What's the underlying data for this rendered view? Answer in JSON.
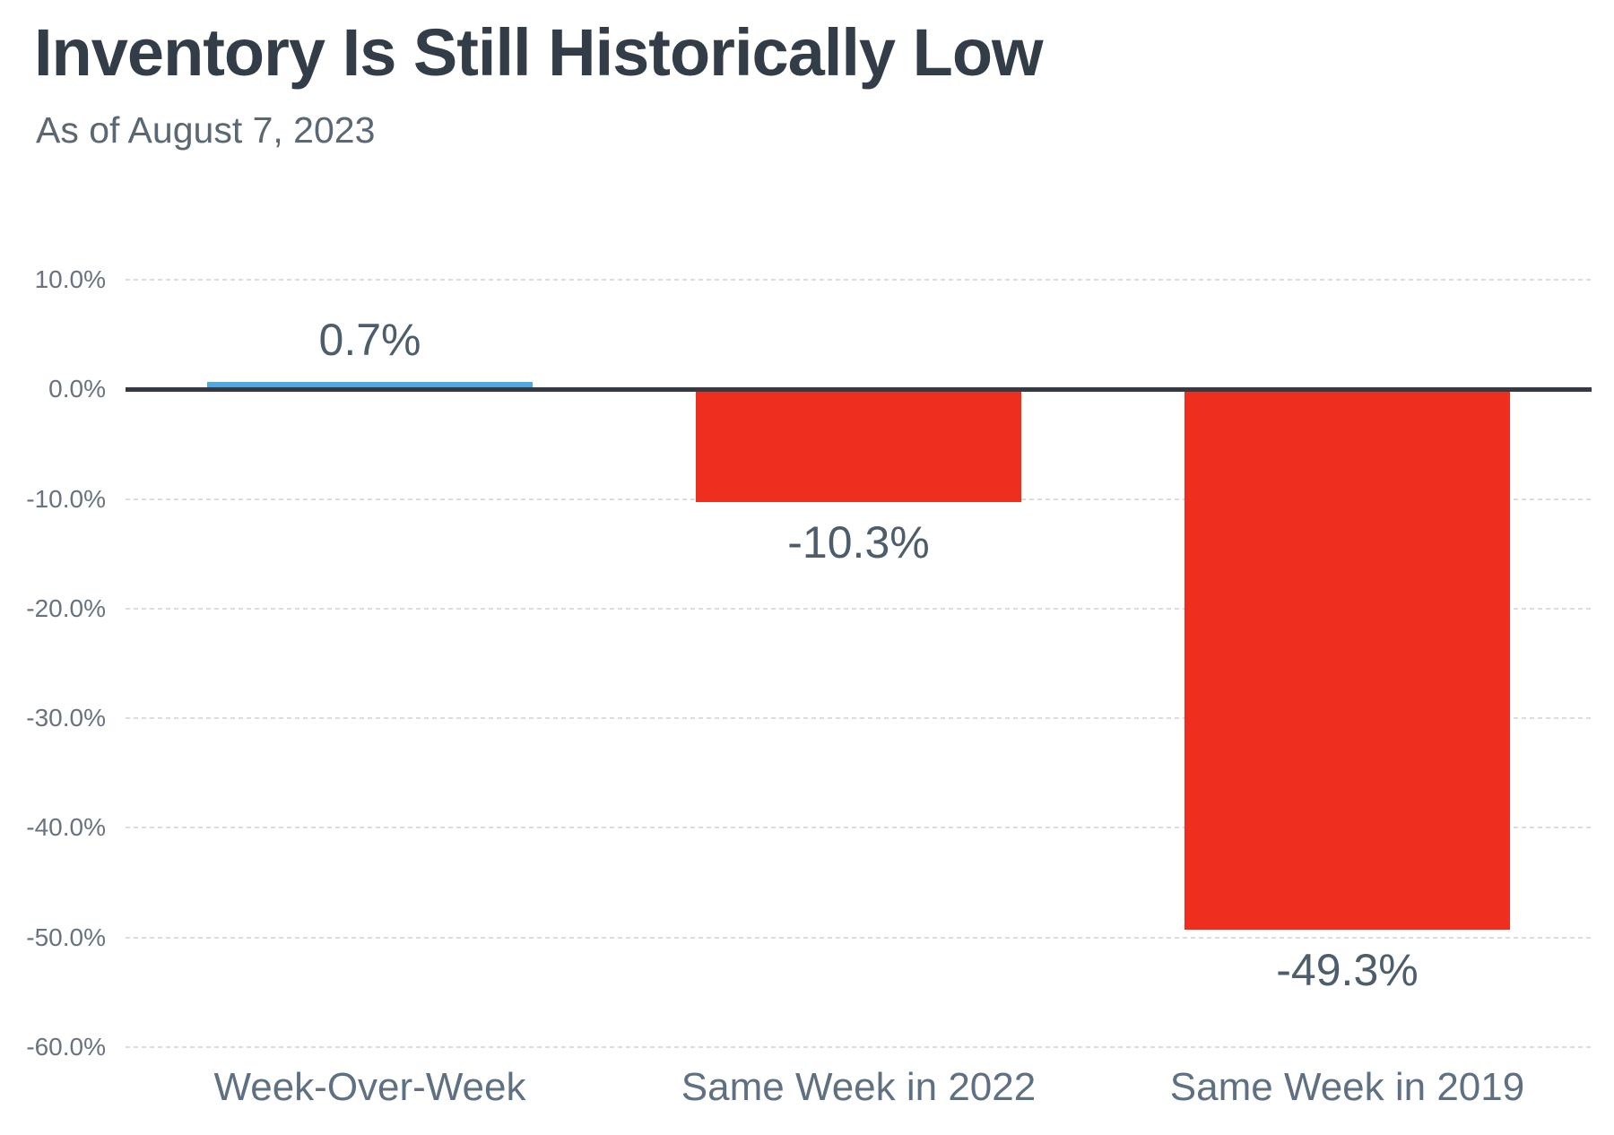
{
  "header": {
    "title": "Inventory Is Still Historically Low",
    "subtitle": "As of August 7, 2023"
  },
  "chart_data": {
    "type": "bar",
    "title": "Inventory Is Still Historically Low",
    "subtitle": "As of August 7, 2023",
    "categories": [
      "Week-Over-Week",
      "Same Week in 2022",
      "Same Week in 2019"
    ],
    "values": [
      0.7,
      -10.3,
      -49.3
    ],
    "data_labels": [
      "0.7%",
      "-10.3%",
      "-49.3%"
    ],
    "bar_colors": [
      "#52a7de",
      "#ee2e1f",
      "#ee2e1f"
    ],
    "xlabel": "",
    "ylabel": "",
    "ylim": [
      -60,
      10
    ],
    "yticks": [
      10,
      0,
      -10,
      -20,
      -30,
      -40,
      -50,
      -60
    ],
    "ytick_labels": [
      "10.0%",
      "0.0%",
      "-10.0%",
      "-20.0%",
      "-30.0%",
      "-40.0%",
      "-50.0%",
      "-60.0%"
    ],
    "grid": "horizontal-dashed",
    "legend": "none",
    "zero_axis": true,
    "colors": {
      "positive_bar": "#52a7de",
      "negative_bar": "#ee2e1f",
      "zero_axis_line": "#333a42",
      "gridline": "#d9dde0",
      "title_text": "#333d48",
      "subtitle_text": "#5b6772",
      "tick_label_text": "#68737f",
      "data_label_text": "#4d5d6b",
      "category_label_text": "#5e7081",
      "background": "#ffffff"
    }
  }
}
